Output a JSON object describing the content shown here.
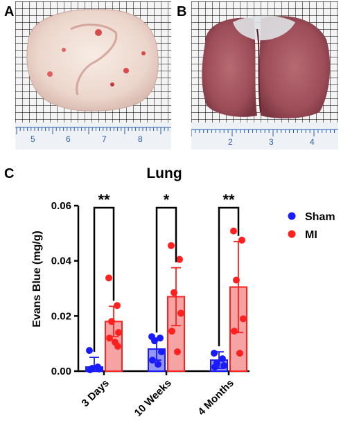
{
  "panels": {
    "a": "A",
    "b": "B",
    "c": "C"
  },
  "ruler_a": [
    "5",
    "6",
    "7",
    "8"
  ],
  "ruler_b": [
    "2",
    "3",
    "4"
  ],
  "colors": {
    "sham": "#1a1aff",
    "mi": "#ff2020",
    "mi_fill": "#f5a3a3",
    "sham_fill": "#9595f5"
  },
  "chart_data": {
    "type": "bar",
    "title": "Lung",
    "xlabel": "",
    "ylabel": "Evans Blue (mg/g)",
    "ylim": [
      0,
      0.06
    ],
    "yticks": [
      "0.00",
      "0.02",
      "0.04",
      "0.06"
    ],
    "categories": [
      "3 Days",
      "10 Weeks",
      "4 Months"
    ],
    "legend_position": "right",
    "series": [
      {
        "name": "Sham",
        "values": [
          0.0015,
          0.008,
          0.004
        ],
        "errors": [
          0.0035,
          0.004,
          0.003
        ],
        "points": [
          [
            0.0075,
            0.0015,
            0.001,
            0.0008,
            0.0005
          ],
          [
            0.0125,
            0.012,
            0.011,
            0.007,
            0.004,
            0.0025
          ],
          [
            0.0065,
            0.0045,
            0.003,
            0.002,
            0.0015
          ]
        ]
      },
      {
        "name": "MI",
        "values": [
          0.018,
          0.027,
          0.0305
        ],
        "errors": [
          0.0055,
          0.0105,
          0.0165
        ],
        "points": [
          [
            0.0338,
            0.0238,
            0.018,
            0.014,
            0.012,
            0.0105,
            0.009
          ],
          [
            0.0455,
            0.0405,
            0.0285,
            0.021,
            0.0145,
            0.007
          ],
          [
            0.0508,
            0.0475,
            0.033,
            0.019,
            0.0145,
            0.0065
          ]
        ]
      }
    ],
    "significance": [
      "**",
      "*",
      "**"
    ]
  }
}
